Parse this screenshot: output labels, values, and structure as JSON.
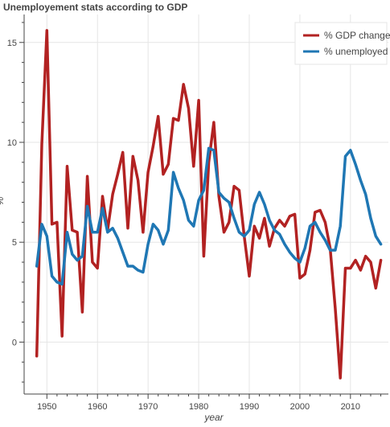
{
  "chart_data": {
    "type": "line",
    "title": "Unemployement stats according to GDP",
    "xlabel": "year",
    "ylabel": "%",
    "xlim": [
      1945.5,
      2017.5
    ],
    "ylim": [
      -2.6,
      16.4
    ],
    "x_ticks": [
      1950,
      1960,
      1970,
      1980,
      1990,
      2000,
      2010
    ],
    "y_ticks": [
      0,
      5,
      10,
      15
    ],
    "grid": true,
    "legend_position": "top-right",
    "x": [
      1948,
      1949,
      1950,
      1951,
      1952,
      1953,
      1954,
      1955,
      1956,
      1957,
      1958,
      1959,
      1960,
      1961,
      1962,
      1963,
      1964,
      1965,
      1966,
      1967,
      1968,
      1969,
      1970,
      1971,
      1972,
      1973,
      1974,
      1975,
      1976,
      1977,
      1978,
      1979,
      1980,
      1981,
      1982,
      1983,
      1984,
      1985,
      1986,
      1987,
      1988,
      1989,
      1990,
      1991,
      1992,
      1993,
      1994,
      1995,
      1996,
      1997,
      1998,
      1999,
      2000,
      2001,
      2002,
      2003,
      2004,
      2005,
      2006,
      2007,
      2008,
      2009,
      2010,
      2011,
      2012,
      2013,
      2014,
      2015,
      2016
    ],
    "series": [
      {
        "name": "% GDP change",
        "color": "#b22222",
        "values": [
          -0.7,
          9.9,
          15.6,
          5.9,
          6.0,
          0.3,
          8.8,
          5.6,
          5.5,
          1.5,
          8.3,
          4.0,
          3.7,
          7.3,
          5.6,
          7.4,
          8.4,
          9.5,
          5.7,
          9.3,
          8.1,
          5.5,
          8.5,
          9.8,
          11.3,
          8.4,
          8.9,
          11.2,
          11.1,
          12.9,
          11.7,
          8.8,
          12.1,
          4.3,
          9.0,
          11.0,
          7.3,
          5.5,
          6.0,
          7.8,
          7.6,
          5.3,
          3.3,
          5.8,
          5.2,
          6.2,
          4.8,
          5.7,
          6.1,
          5.8,
          6.3,
          6.4,
          3.2,
          3.4,
          4.6,
          6.5,
          6.6,
          6.0,
          4.7,
          1.7,
          -1.8,
          3.7,
          3.7,
          4.1,
          3.6,
          4.3,
          4.0,
          2.7,
          4.1
        ]
      },
      {
        "name": "% unemployed",
        "color": "#1f77b4",
        "values": [
          3.8,
          5.9,
          5.3,
          3.3,
          3.0,
          2.9,
          5.5,
          4.4,
          4.1,
          4.3,
          6.8,
          5.5,
          5.5,
          6.7,
          5.5,
          5.7,
          5.2,
          4.5,
          3.8,
          3.8,
          3.6,
          3.5,
          4.9,
          5.9,
          5.6,
          4.9,
          5.6,
          8.5,
          7.7,
          7.1,
          6.1,
          5.8,
          7.1,
          7.6,
          9.7,
          9.6,
          7.5,
          7.2,
          7.0,
          6.2,
          5.5,
          5.3,
          5.6,
          6.9,
          7.5,
          6.9,
          6.1,
          5.6,
          5.4,
          4.9,
          4.5,
          4.2,
          4.0,
          4.7,
          5.8,
          6.0,
          5.5,
          5.1,
          4.6,
          4.6,
          5.8,
          9.3,
          9.6,
          8.9,
          8.1,
          7.4,
          6.2,
          5.3,
          4.9
        ]
      }
    ]
  }
}
